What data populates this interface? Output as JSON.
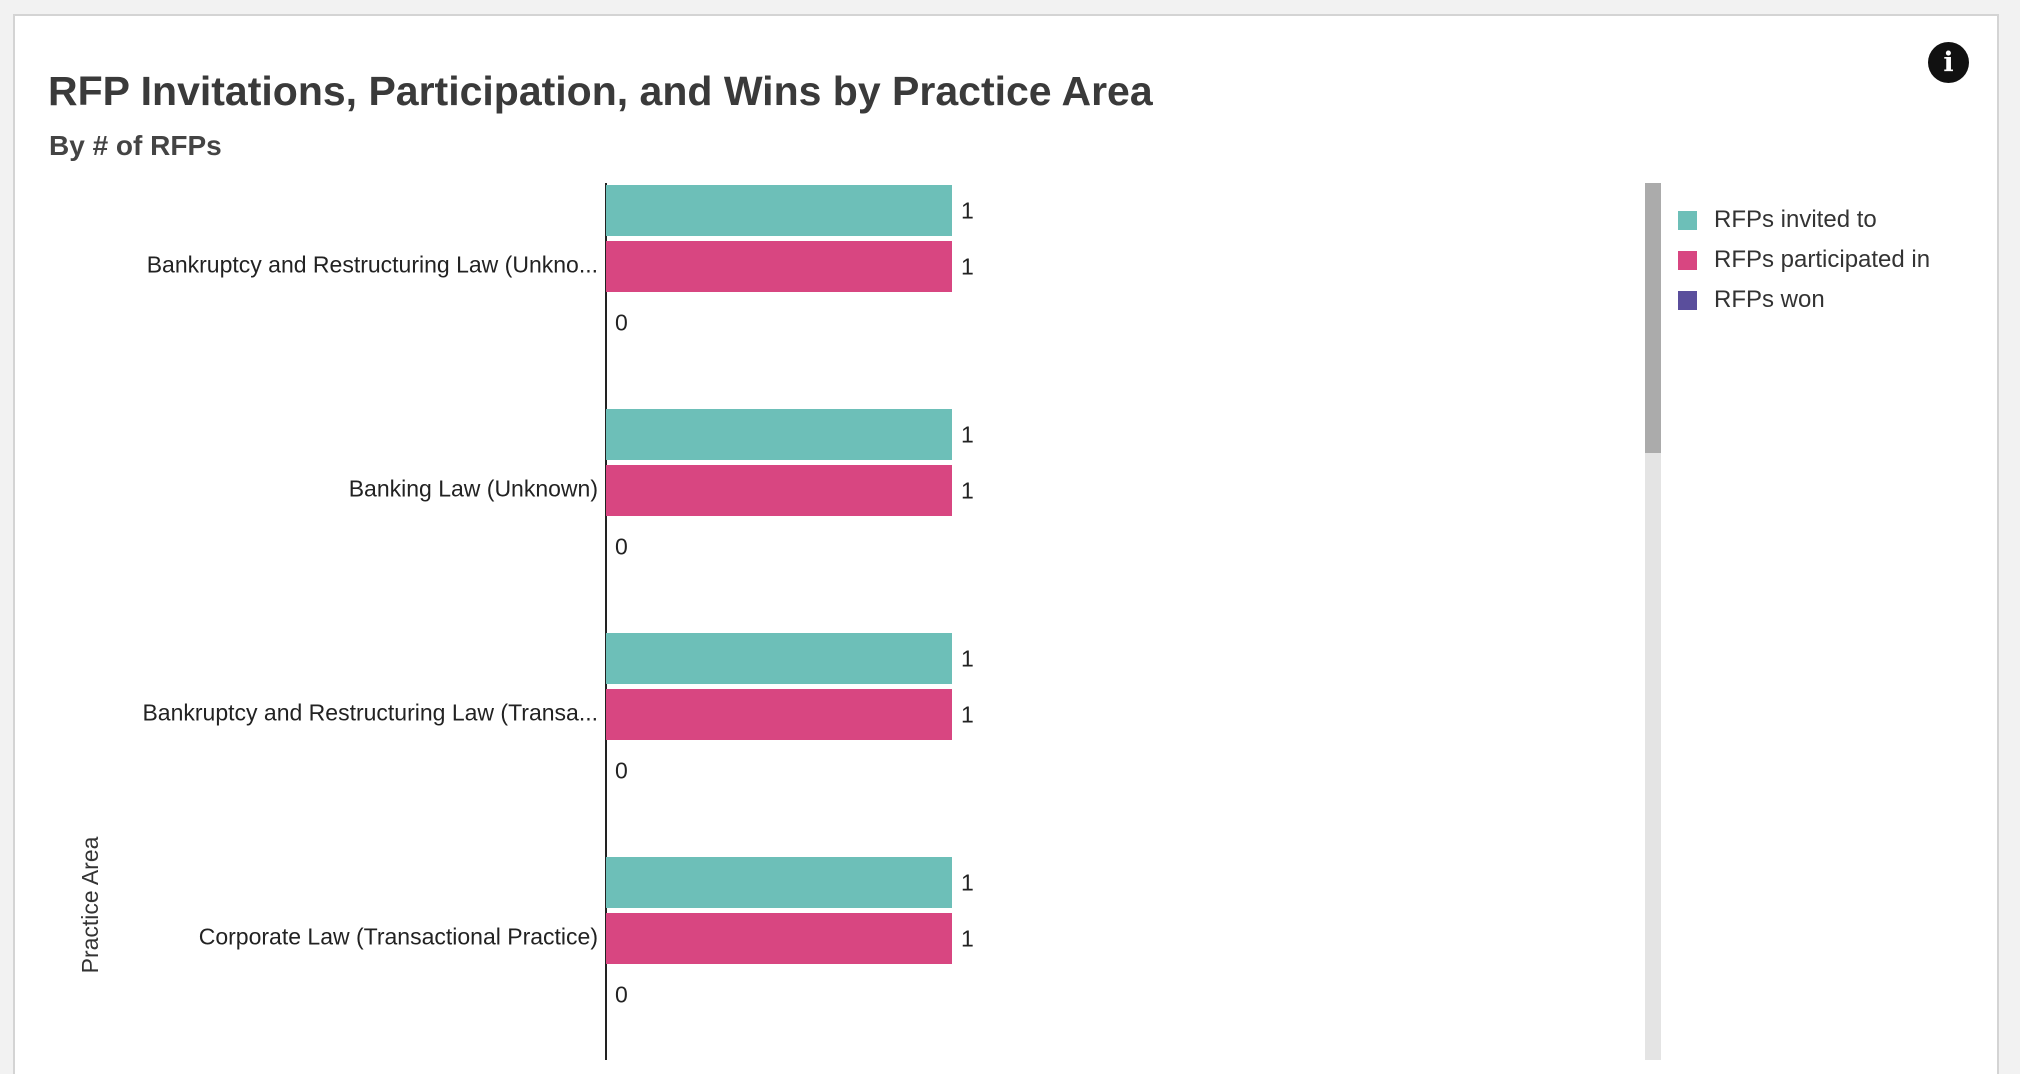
{
  "header": {
    "title": "RFP Invitations, Participation, and Wins by Practice Area",
    "subtitle": "By # of RFPs",
    "info_icon": "info-icon"
  },
  "legend": {
    "items": [
      {
        "label": "RFPs invited to",
        "color": "#6dbfb8"
      },
      {
        "label": "RFPs participated in",
        "color": "#d84681"
      },
      {
        "label": "RFPs won",
        "color": "#5a4e9c"
      }
    ]
  },
  "chart_data": {
    "type": "bar",
    "orientation": "horizontal",
    "title": "RFP Invitations, Participation, and Wins by Practice Area",
    "subtitle": "By # of RFPs",
    "ylabel": "Practice Area",
    "xlabel": "",
    "categories": [
      "Bankruptcy and Restructuring Law (Unkno...",
      "Banking Law (Unknown)",
      "Bankruptcy and Restructuring Law (Transa...",
      "Corporate Law (Transactional Practice)"
    ],
    "series": [
      {
        "name": "RFPs invited to",
        "values": [
          1,
          1,
          1,
          1
        ],
        "color": "#6dbfb8"
      },
      {
        "name": "RFPs participated in",
        "values": [
          1,
          1,
          1,
          1
        ],
        "color": "#d84681"
      },
      {
        "name": "RFPs won",
        "values": [
          0,
          0,
          0,
          0
        ],
        "color": "#5a4e9c"
      }
    ],
    "xlim": [
      0,
      4
    ],
    "grid": false,
    "data_labels": true,
    "legend_position": "right"
  }
}
